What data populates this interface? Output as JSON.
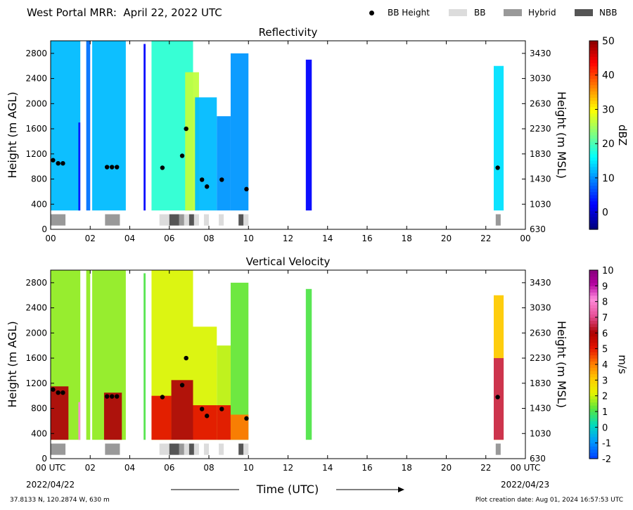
{
  "title": "West Portal MRR:  April 22, 2022 UTC",
  "legend": [
    {
      "label": "BB Height",
      "kind": "marker",
      "color": "#000000"
    },
    {
      "label": "BB",
      "kind": "swatch",
      "color": "#dcdcdc"
    },
    {
      "label": "Hybrid",
      "kind": "swatch",
      "color": "#999999"
    },
    {
      "label": "NBB",
      "kind": "swatch",
      "color": "#555555"
    }
  ],
  "x_axis": {
    "label": "Time (UTC)",
    "ticks": [
      "00",
      "02",
      "04",
      "06",
      "08",
      "10",
      "12",
      "14",
      "16",
      "18",
      "20",
      "22",
      "00"
    ],
    "bottom_ticks": [
      "00 UTC",
      "02",
      "04",
      "06",
      "08",
      "10",
      "12",
      "14",
      "16",
      "18",
      "20",
      "22",
      "00 UTC"
    ],
    "start_date": "2022/04/22",
    "end_date": "2022/04/23",
    "range_hours": [
      0,
      24
    ]
  },
  "footer": {
    "location": "37.8133 N, 120.2874 W, 630 m",
    "created": "Plot creation date: Aug 01, 2024 16:57:53 UTC"
  },
  "chart_data": [
    {
      "type": "heatmap",
      "title": "Reflectivity",
      "ylabel": "Height (m AGL)",
      "y2label": "Height (m MSL)",
      "ylim": [
        0,
        3000
      ],
      "y_ticks": [
        0,
        400,
        800,
        1200,
        1600,
        2000,
        2400,
        2800
      ],
      "y2_ticks": [
        630,
        1030,
        1430,
        1830,
        2230,
        2630,
        3030,
        3430
      ],
      "colorbar": {
        "label": "dBZ",
        "range": [
          -5,
          50
        ],
        "ticks": [
          0,
          10,
          20,
          30,
          40,
          50
        ],
        "cmap": "jet"
      },
      "bb_height_points": [
        {
          "t": 0.12,
          "h": 1100
        },
        {
          "t": 0.38,
          "h": 1050
        },
        {
          "t": 0.62,
          "h": 1050
        },
        {
          "t": 2.85,
          "h": 990
        },
        {
          "t": 3.1,
          "h": 990
        },
        {
          "t": 3.35,
          "h": 990
        },
        {
          "t": 5.65,
          "h": 980
        },
        {
          "t": 6.65,
          "h": 1170
        },
        {
          "t": 6.85,
          "h": 1600
        },
        {
          "t": 7.65,
          "h": 790
        },
        {
          "t": 7.9,
          "h": 680
        },
        {
          "t": 8.65,
          "h": 790
        },
        {
          "t": 9.9,
          "h": 640
        },
        {
          "t": 22.6,
          "h": 980
        }
      ],
      "bb_type_segments": [
        {
          "start": 0.0,
          "end": 0.75,
          "type": "Hybrid"
        },
        {
          "start": 2.75,
          "end": 3.5,
          "type": "Hybrid"
        },
        {
          "start": 5.5,
          "end": 6.0,
          "type": "BB"
        },
        {
          "start": 6.0,
          "end": 6.5,
          "type": "NBB"
        },
        {
          "start": 6.5,
          "end": 6.75,
          "type": "Hybrid"
        },
        {
          "start": 6.75,
          "end": 7.0,
          "type": "BB"
        },
        {
          "start": 7.0,
          "end": 7.25,
          "type": "NBB"
        },
        {
          "start": 7.25,
          "end": 7.5,
          "type": "BB"
        },
        {
          "start": 7.75,
          "end": 8.0,
          "type": "BB"
        },
        {
          "start": 8.5,
          "end": 8.75,
          "type": "BB"
        },
        {
          "start": 9.5,
          "end": 9.75,
          "type": "NBB"
        },
        {
          "start": 9.75,
          "end": 10.0,
          "type": "BB"
        },
        {
          "start": 22.5,
          "end": 22.75,
          "type": "Hybrid"
        }
      ],
      "echo_regions": [
        {
          "start": 0.0,
          "end": 1.5,
          "top": 3000,
          "value": 12
        },
        {
          "start": 1.4,
          "end": 1.5,
          "top": 1700,
          "value": 3
        },
        {
          "start": 1.8,
          "end": 2.0,
          "top": 3000,
          "value": 8
        },
        {
          "start": 2.1,
          "end": 3.8,
          "top": 3000,
          "value": 12
        },
        {
          "start": 4.7,
          "end": 4.8,
          "top": 2950,
          "value": 2
        },
        {
          "start": 5.1,
          "end": 7.2,
          "top": 3000,
          "value": 18
        },
        {
          "start": 6.8,
          "end": 7.5,
          "top": 2500,
          "value": 26
        },
        {
          "start": 7.3,
          "end": 8.4,
          "top": 2100,
          "value": 12
        },
        {
          "start": 8.4,
          "end": 9.1,
          "top": 1800,
          "value": 10
        },
        {
          "start": 9.1,
          "end": 10.0,
          "top": 2800,
          "value": 10
        },
        {
          "start": 12.9,
          "end": 13.2,
          "top": 2700,
          "value": 2
        },
        {
          "start": 22.4,
          "end": 22.9,
          "top": 2600,
          "value": 14
        }
      ]
    },
    {
      "type": "heatmap",
      "title": "Vertical Velocity",
      "ylabel": "Height (m AGL)",
      "y2label": "Height (m MSL)",
      "ylim": [
        0,
        3000
      ],
      "y_ticks": [
        0,
        400,
        800,
        1200,
        1600,
        2000,
        2400,
        2800
      ],
      "y2_ticks": [
        630,
        1030,
        1430,
        1830,
        2230,
        2630,
        3030,
        3430
      ],
      "colorbar": {
        "label": "m/s",
        "range": [
          -2,
          10
        ],
        "ticks": [
          -2,
          -1,
          0,
          1,
          2,
          3,
          4,
          5,
          6,
          7,
          8,
          9,
          10
        ],
        "cmap": "rainbow-magenta"
      },
      "bb_height_points": [
        {
          "t": 0.12,
          "h": 1100
        },
        {
          "t": 0.38,
          "h": 1050
        },
        {
          "t": 0.62,
          "h": 1050
        },
        {
          "t": 2.85,
          "h": 990
        },
        {
          "t": 3.1,
          "h": 990
        },
        {
          "t": 3.35,
          "h": 990
        },
        {
          "t": 5.65,
          "h": 980
        },
        {
          "t": 6.65,
          "h": 1170
        },
        {
          "t": 6.85,
          "h": 1600
        },
        {
          "t": 7.65,
          "h": 790
        },
        {
          "t": 7.9,
          "h": 680
        },
        {
          "t": 8.65,
          "h": 790
        },
        {
          "t": 9.9,
          "h": 640
        },
        {
          "t": 22.6,
          "h": 980
        }
      ],
      "bb_type_segments": [
        {
          "start": 0.0,
          "end": 0.75,
          "type": "Hybrid"
        },
        {
          "start": 2.75,
          "end": 3.5,
          "type": "Hybrid"
        },
        {
          "start": 5.5,
          "end": 6.0,
          "type": "BB"
        },
        {
          "start": 6.0,
          "end": 6.5,
          "type": "NBB"
        },
        {
          "start": 6.5,
          "end": 6.75,
          "type": "Hybrid"
        },
        {
          "start": 6.75,
          "end": 7.0,
          "type": "BB"
        },
        {
          "start": 7.0,
          "end": 7.25,
          "type": "NBB"
        },
        {
          "start": 7.25,
          "end": 7.5,
          "type": "BB"
        },
        {
          "start": 7.75,
          "end": 8.0,
          "type": "BB"
        },
        {
          "start": 8.5,
          "end": 8.75,
          "type": "BB"
        },
        {
          "start": 9.5,
          "end": 9.75,
          "type": "NBB"
        },
        {
          "start": 9.75,
          "end": 10.0,
          "type": "BB"
        },
        {
          "start": 22.5,
          "end": 22.75,
          "type": "Hybrid"
        }
      ],
      "snow_regions": [
        {
          "start": 0.0,
          "end": 1.5,
          "top": 3000,
          "value": 1.5
        },
        {
          "start": 1.8,
          "end": 2.0,
          "top": 3000,
          "value": 1.5
        },
        {
          "start": 2.1,
          "end": 3.8,
          "top": 3000,
          "value": 1.5
        },
        {
          "start": 4.7,
          "end": 4.8,
          "top": 2950,
          "value": 1.0
        },
        {
          "start": 5.1,
          "end": 7.2,
          "top": 3000,
          "value": 2.0
        },
        {
          "start": 7.2,
          "end": 8.4,
          "top": 2100,
          "value": 2.0
        },
        {
          "start": 8.4,
          "end": 9.1,
          "top": 1800,
          "value": 1.8
        },
        {
          "start": 9.1,
          "end": 10.0,
          "top": 2800,
          "value": 1.2
        },
        {
          "start": 12.9,
          "end": 13.2,
          "top": 2700,
          "value": 1.0
        },
        {
          "start": 22.4,
          "end": 22.9,
          "top": 2600,
          "value": 3.0
        }
      ],
      "rain_regions": [
        {
          "start": 0.0,
          "end": 0.9,
          "bb_top": 1150,
          "value": 6.0
        },
        {
          "start": 1.4,
          "end": 1.5,
          "bb_top": 900,
          "value": 8.0
        },
        {
          "start": 2.7,
          "end": 3.6,
          "bb_top": 1050,
          "value": 6.0
        },
        {
          "start": 5.1,
          "end": 6.1,
          "bb_top": 1000,
          "value": 5.0
        },
        {
          "start": 6.1,
          "end": 7.2,
          "bb_top": 1250,
          "value": 6.0
        },
        {
          "start": 7.2,
          "end": 8.4,
          "bb_top": 850,
          "value": 5.0
        },
        {
          "start": 8.4,
          "end": 9.1,
          "bb_top": 850,
          "value": 5.0
        },
        {
          "start": 9.1,
          "end": 10.0,
          "bb_top": 700,
          "value": 4.0
        },
        {
          "start": 22.4,
          "end": 22.9,
          "bb_top": 1600,
          "value": 6.5
        }
      ]
    }
  ]
}
